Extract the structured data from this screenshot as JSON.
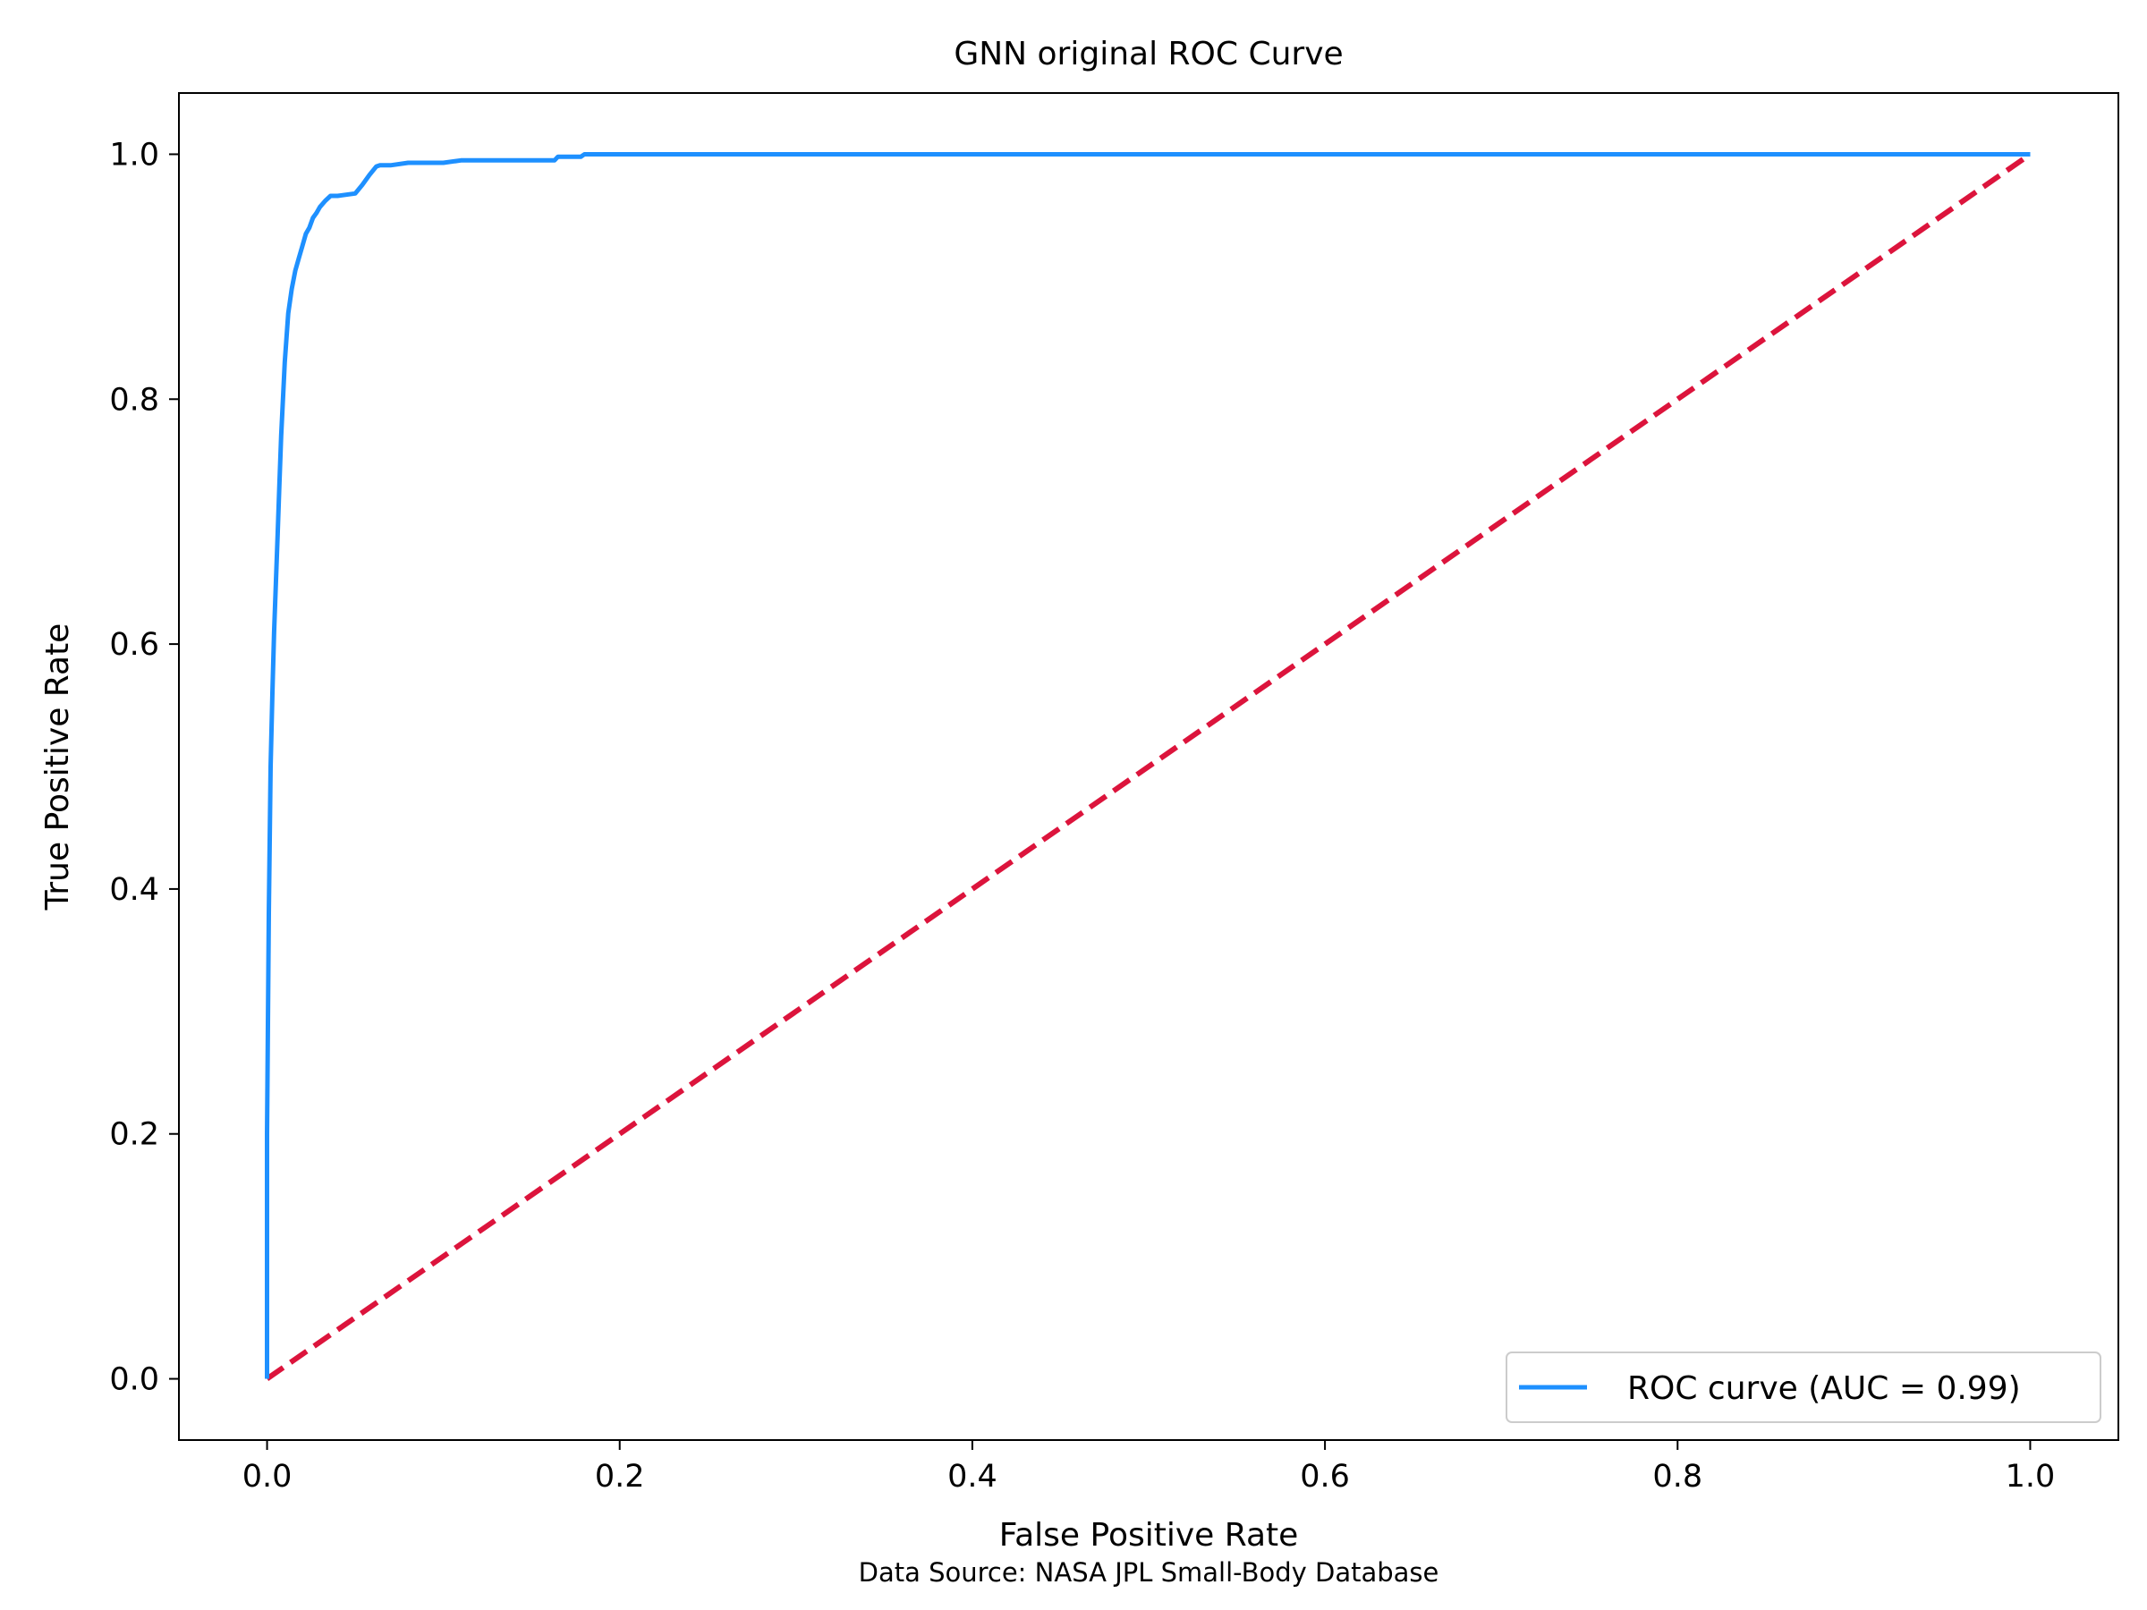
{
  "chart_data": {
    "type": "line",
    "title": "GNN original ROC Curve",
    "xlabel": "False Positive Rate",
    "ylabel": "True Positive Rate",
    "caption": "Data Source: NASA JPL Small-Body Database",
    "xlim": [
      -0.05,
      1.05
    ],
    "ylim": [
      -0.05,
      1.05
    ],
    "xticks": [
      0.0,
      0.2,
      0.4,
      0.6,
      0.8,
      1.0
    ],
    "xtick_labels": [
      "0.0",
      "0.2",
      "0.4",
      "0.6",
      "0.8",
      "1.0"
    ],
    "yticks": [
      0.0,
      0.2,
      0.4,
      0.6,
      0.8,
      1.0
    ],
    "ytick_labels": [
      "0.0",
      "0.2",
      "0.4",
      "0.6",
      "0.8",
      "1.0"
    ],
    "grid": false,
    "legend_position": "lower-right",
    "series": [
      {
        "name": "ROC curve (AUC = 0.99)",
        "color": "#1e90ff",
        "style": "solid",
        "x": [
          0.0,
          0.0,
          0.001,
          0.002,
          0.003,
          0.004,
          0.005,
          0.006,
          0.007,
          0.008,
          0.01,
          0.012,
          0.014,
          0.016,
          0.018,
          0.02,
          0.022,
          0.024,
          0.026,
          0.028,
          0.03,
          0.033,
          0.036,
          0.04,
          0.05,
          0.054,
          0.058,
          0.062,
          0.064,
          0.07,
          0.08,
          0.09,
          0.1,
          0.11,
          0.13,
          0.15,
          0.163,
          0.165,
          0.178,
          0.18,
          0.3,
          0.5,
          0.7,
          0.9,
          1.0
        ],
        "y": [
          0.0,
          0.2,
          0.38,
          0.5,
          0.56,
          0.61,
          0.65,
          0.69,
          0.73,
          0.77,
          0.83,
          0.87,
          0.89,
          0.905,
          0.915,
          0.925,
          0.935,
          0.94,
          0.948,
          0.952,
          0.957,
          0.962,
          0.966,
          0.966,
          0.968,
          0.975,
          0.983,
          0.99,
          0.991,
          0.991,
          0.993,
          0.993,
          0.993,
          0.995,
          0.995,
          0.995,
          0.995,
          0.998,
          0.998,
          1.0,
          1.0,
          1.0,
          1.0,
          1.0,
          1.0
        ]
      },
      {
        "name": "",
        "color": "#dc143c",
        "style": "dashed",
        "x": [
          0.0,
          1.0
        ],
        "y": [
          0.0,
          1.0
        ]
      }
    ]
  }
}
